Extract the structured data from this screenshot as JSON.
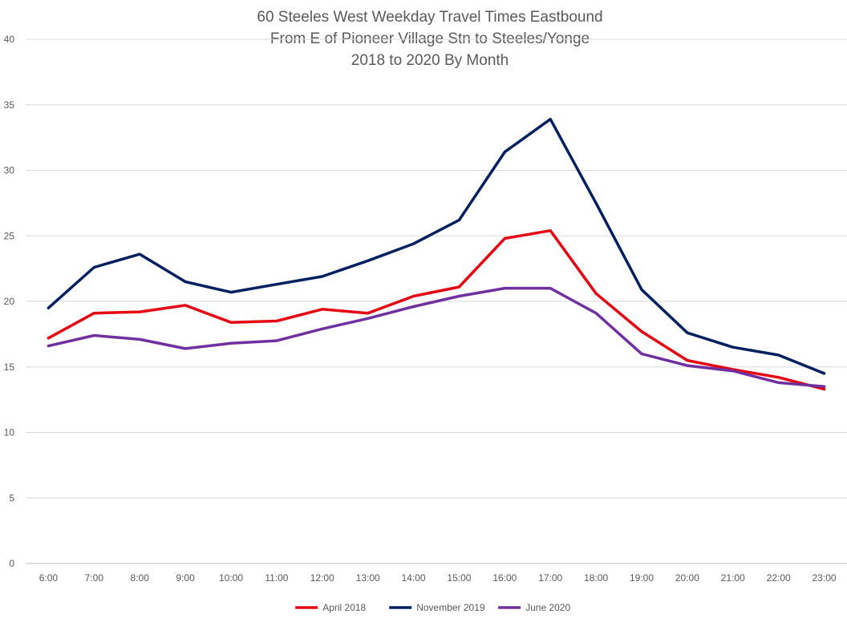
{
  "chart_data": {
    "type": "line",
    "title": [
      "60 Steeles West Weekday Travel Times Eastbound",
      "From E of Pioneer Village Stn to Steeles/Yonge",
      "2018 to 2020 By Month"
    ],
    "xlabel": "",
    "ylabel": "",
    "ylim": [
      0,
      40
    ],
    "yticks": [
      0,
      5,
      10,
      15,
      20,
      25,
      30,
      35,
      40
    ],
    "grid": true,
    "legend": "bottom",
    "categories": [
      "6:00",
      "7:00",
      "8:00",
      "9:00",
      "10:00",
      "11:00",
      "12:00",
      "13:00",
      "14:00",
      "15:00",
      "16:00",
      "17:00",
      "18:00",
      "19:00",
      "20:00",
      "21:00",
      "22:00",
      "23:00"
    ],
    "series": [
      {
        "name": "April 2018",
        "color": "#e30613",
        "values": [
          17.2,
          19.1,
          19.2,
          19.7,
          18.4,
          18.5,
          19.4,
          19.1,
          20.4,
          21.1,
          24.8,
          25.4,
          20.6,
          17.7,
          15.5,
          14.8,
          14.2,
          13.3
        ]
      },
      {
        "name": "November 2019",
        "color": "#002060",
        "values": [
          19.5,
          22.6,
          23.6,
          21.5,
          20.7,
          21.3,
          21.9,
          23.1,
          24.4,
          26.2,
          31.4,
          33.9,
          27.5,
          20.9,
          17.6,
          16.5,
          15.9,
          14.5
        ]
      },
      {
        "name": "June 2020",
        "color": "#7030a0",
        "values": [
          16.6,
          17.4,
          17.1,
          16.4,
          16.8,
          17.0,
          17.9,
          18.7,
          19.6,
          20.4,
          21.0,
          21.0,
          19.1,
          16.0,
          15.1,
          14.7,
          13.8,
          13.5
        ]
      }
    ]
  }
}
